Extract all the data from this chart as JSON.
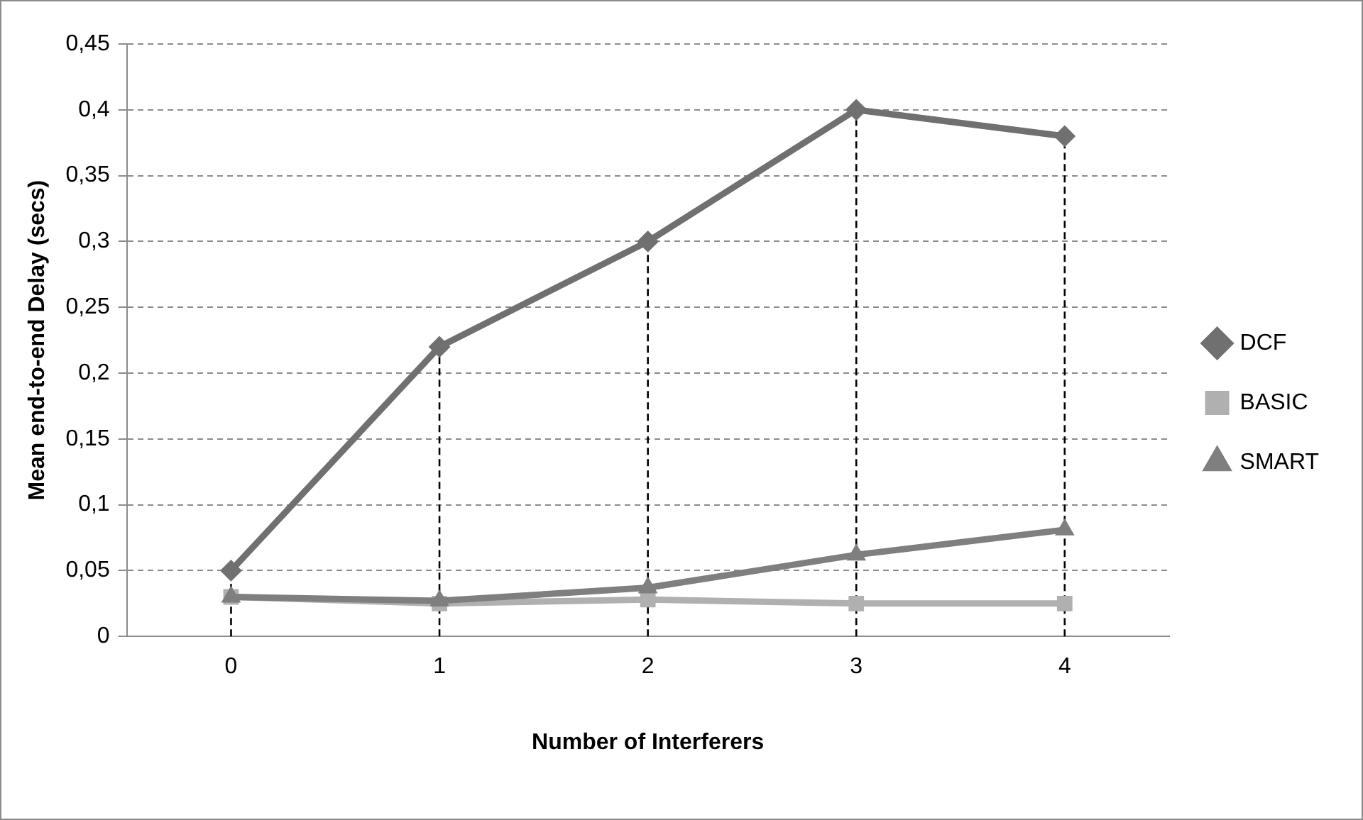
{
  "chart_data": {
    "type": "line",
    "xlabel": "Number of Interferers",
    "ylabel": "Mean end-to-end Delay (secs)",
    "categories": [
      "0",
      "1",
      "2",
      "3",
      "4"
    ],
    "series": [
      {
        "name": "DCF",
        "color": "#707070",
        "marker": "diamond",
        "values": [
          0.05,
          0.22,
          0.3,
          0.4,
          0.38
        ]
      },
      {
        "name": "BASIC",
        "color": "#b0b0b0",
        "marker": "square",
        "values": [
          0.03,
          0.025,
          0.028,
          0.025,
          0.025
        ]
      },
      {
        "name": "SMART",
        "color": "#7f7f7f",
        "marker": "triangle",
        "values": [
          0.03,
          0.027,
          0.037,
          0.062,
          0.081
        ]
      }
    ],
    "ylim": [
      0,
      0.45
    ],
    "yticks": [
      {
        "value": 0,
        "label": "0"
      },
      {
        "value": 0.05,
        "label": "0,05"
      },
      {
        "value": 0.1,
        "label": "0,1"
      },
      {
        "value": 0.15,
        "label": "0,15"
      },
      {
        "value": 0.2,
        "label": "0,2"
      },
      {
        "value": 0.25,
        "label": "0,25"
      },
      {
        "value": 0.3,
        "label": "0,3"
      },
      {
        "value": 0.35,
        "label": "0,35"
      },
      {
        "value": 0.4,
        "label": "0,4"
      },
      {
        "value": 0.45,
        "label": "0,45"
      }
    ],
    "grid": "y",
    "legend": "right",
    "ref_lines": [
      {
        "axis": "x",
        "value": "0",
        "color": "#000000",
        "line_style": "dashed"
      },
      {
        "axis": "x",
        "value": "1",
        "color": "#000000",
        "line_style": "dashed"
      },
      {
        "axis": "x",
        "value": "2",
        "color": "#000000",
        "line_style": "dashed"
      },
      {
        "axis": "x",
        "value": "3",
        "color": "#000000",
        "line_style": "dashed"
      },
      {
        "axis": "x",
        "value": "4",
        "color": "#000000",
        "line_style": "dashed"
      }
    ]
  }
}
